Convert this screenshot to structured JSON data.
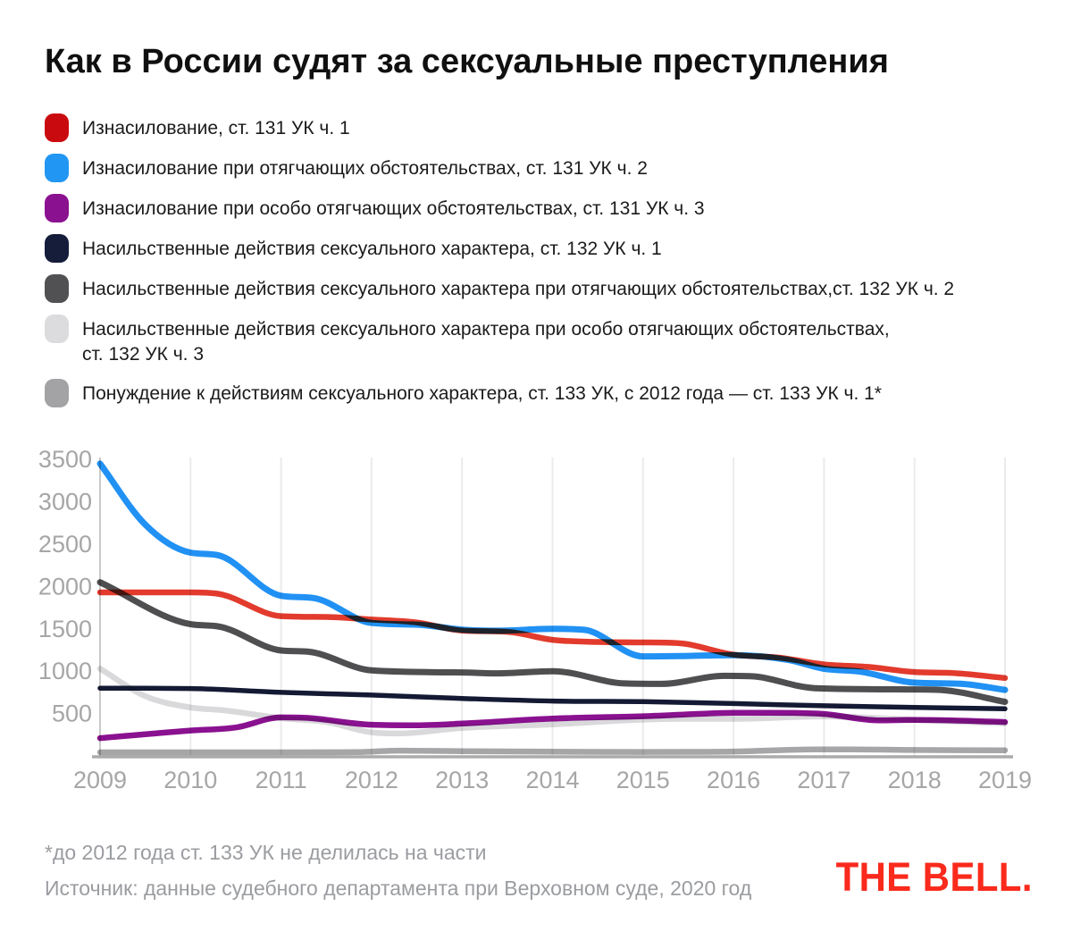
{
  "header": {
    "title": "Как в России судят за сексуальные преступления"
  },
  "legend": {
    "items": [
      {
        "chip_color": "#c90b0f",
        "label": "Изнасилование, ст. 131 УК ч. 1"
      },
      {
        "chip_color": "#2196f3",
        "label": "Изнасилование при отягчающих обстоятельствах, ст. 131 УК ч. 2"
      },
      {
        "chip_color": "#8a1190",
        "label": "Изнасилование при особо отягчающих обстоятельствах, ст. 131 УК ч. 3"
      },
      {
        "chip_color": "#161d3a",
        "label": "Насильственные действия сексуального характера, ст. 132 УК ч. 1"
      },
      {
        "chip_color": "#515153",
        "label": "Насильственные действия сексуального характера при отягчающих обстоятельствах,ст. 132 УК ч. 2"
      },
      {
        "chip_color": "#dcdcde",
        "label": "Насильственные действия сексуального характера при особо отягчающих обстоятельствах,\nст. 132 УК ч. 3"
      },
      {
        "chip_color": "#a3a3a5",
        "label": "Понуждение к действиям сексуального характера, ст. 133 УК, с 2012 года — ст. 133 УК ч. 1*"
      }
    ]
  },
  "chart_data": {
    "type": "line",
    "title": "Как в России судят за сексуальные преступления",
    "xlabel": "",
    "ylabel": "",
    "xlim": [
      2009,
      2019
    ],
    "ylim": [
      0,
      3500
    ],
    "x_ticks": [
      2009,
      2010,
      2011,
      2012,
      2013,
      2014,
      2015,
      2016,
      2017,
      2018,
      2019
    ],
    "y_ticks": [
      3500,
      3000,
      2500,
      2000,
      1500,
      1000,
      500
    ],
    "grid": "vertical-only",
    "legend_position": "top-left-above-chart",
    "series": [
      {
        "id": "red",
        "name": "Изнасилование, ст. 131 УК ч. 1",
        "color": "#e23b2d",
        "points": [
          [
            2009,
            1930
          ],
          [
            2010,
            1930
          ],
          [
            2010.3,
            1915
          ],
          [
            2011,
            1650
          ],
          [
            2011.5,
            1640
          ],
          [
            2012,
            1610
          ],
          [
            2012.5,
            1575
          ],
          [
            2013,
            1480
          ],
          [
            2013.5,
            1465
          ],
          [
            2014,
            1370
          ],
          [
            2014.5,
            1345
          ],
          [
            2015,
            1340
          ],
          [
            2015.4,
            1330
          ],
          [
            2016,
            1195
          ],
          [
            2016.5,
            1160
          ],
          [
            2017,
            1080
          ],
          [
            2017.5,
            1050
          ],
          [
            2018,
            990
          ],
          [
            2018.4,
            980
          ],
          [
            2019,
            920
          ]
        ]
      },
      {
        "id": "blue",
        "name": "Изнасилование при отягчающих обстоятельствах, ст. 131 УК ч. 2",
        "color": "#2191f4",
        "points": [
          [
            2009,
            3450
          ],
          [
            2009.5,
            2730
          ],
          [
            2010,
            2400
          ],
          [
            2010.3,
            2370
          ],
          [
            2011,
            1890
          ],
          [
            2011.35,
            1865
          ],
          [
            2012,
            1570
          ],
          [
            2012.5,
            1550
          ],
          [
            2013,
            1490
          ],
          [
            2013.4,
            1478
          ],
          [
            2014,
            1500
          ],
          [
            2014.35,
            1488
          ],
          [
            2015,
            1175
          ],
          [
            2015.5,
            1180
          ],
          [
            2016,
            1190
          ],
          [
            2016.6,
            1135
          ],
          [
            2017,
            1030
          ],
          [
            2017.4,
            995
          ],
          [
            2018,
            865
          ],
          [
            2018.5,
            852
          ],
          [
            2019,
            780
          ]
        ]
      },
      {
        "id": "purple",
        "name": "Изнасилование при особо отягчающих обстоятельствах, ст. 131 УК ч. 3",
        "color": "#8a1190",
        "points": [
          [
            2009,
            210
          ],
          [
            2010,
            300
          ],
          [
            2010.5,
            335
          ],
          [
            2011,
            455
          ],
          [
            2011.3,
            448
          ],
          [
            2012,
            368
          ],
          [
            2012.5,
            362
          ],
          [
            2013,
            382
          ],
          [
            2014,
            440
          ],
          [
            2015,
            468
          ],
          [
            2016,
            508
          ],
          [
            2016.4,
            510
          ],
          [
            2017,
            495
          ],
          [
            2017.6,
            420
          ],
          [
            2018,
            425
          ],
          [
            2018.4,
            420
          ],
          [
            2019,
            400
          ]
        ]
      },
      {
        "id": "navy",
        "name": "Насильственные действия сексуального характера, ст. 132 УК ч. 1",
        "color": "#141a33",
        "points": [
          [
            2009,
            800
          ],
          [
            2010,
            795
          ],
          [
            2011,
            750
          ],
          [
            2012,
            718
          ],
          [
            2013,
            678
          ],
          [
            2014,
            648
          ],
          [
            2015,
            640
          ],
          [
            2016,
            618
          ],
          [
            2017,
            592
          ],
          [
            2018,
            572
          ],
          [
            2019,
            556
          ]
        ]
      },
      {
        "id": "darkgray",
        "name": "Насильственные действия сексуального характера при отягчающих обстоятельствах,ст. 132 УК ч. 2",
        "color": "#4f4f51",
        "points": [
          [
            2009,
            2050
          ],
          [
            2010,
            1555
          ],
          [
            2010.3,
            1530
          ],
          [
            2011,
            1245
          ],
          [
            2011.3,
            1230
          ],
          [
            2012,
            1010
          ],
          [
            2013,
            985
          ],
          [
            2013.4,
            975
          ],
          [
            2014,
            1000
          ],
          [
            2014.8,
            855
          ],
          [
            2015.2,
            850
          ],
          [
            2015.9,
            945
          ],
          [
            2016.2,
            940
          ],
          [
            2016.9,
            800
          ],
          [
            2018,
            785
          ],
          [
            2018.3,
            778
          ],
          [
            2019,
            638
          ]
        ]
      },
      {
        "id": "lightgray",
        "name": "Насильственные действия сексуального характера при особо отягчающих обстоятельствах, ст. 132 УК ч. 3",
        "color": "#d9d9db",
        "points": [
          [
            2009,
            1030
          ],
          [
            2009.5,
            705
          ],
          [
            2010,
            572
          ],
          [
            2010.4,
            535
          ],
          [
            2011,
            445
          ],
          [
            2011.5,
            400
          ],
          [
            2012,
            278
          ],
          [
            2012.3,
            265
          ],
          [
            2013,
            330
          ],
          [
            2014,
            372
          ],
          [
            2015,
            428
          ],
          [
            2015.5,
            438
          ],
          [
            2016,
            438
          ],
          [
            2017,
            465
          ],
          [
            2017.5,
            452
          ],
          [
            2018,
            425
          ],
          [
            2019,
            385
          ]
        ]
      },
      {
        "id": "gray",
        "name": "Понуждение к действиям сексуального характера, ст. 133 УК, с 2012 года — ст. 133 УК ч. 1",
        "color": "#a6a6a8",
        "points": [
          [
            2009,
            42
          ],
          [
            2010,
            42
          ],
          [
            2011,
            42
          ],
          [
            2011.8,
            44
          ],
          [
            2012.3,
            62
          ],
          [
            2013,
            56
          ],
          [
            2014,
            50
          ],
          [
            2015,
            46
          ],
          [
            2016,
            52
          ],
          [
            2016.9,
            76
          ],
          [
            2017.3,
            76
          ],
          [
            2018,
            70
          ],
          [
            2019,
            66
          ]
        ]
      }
    ]
  },
  "footer": {
    "footnote": "*до 2012 года ст. 133 УК не делилась на части",
    "source": "Источник: данные судебного департамента при Верховном суде, 2020 год",
    "logo": "THE BELL."
  }
}
